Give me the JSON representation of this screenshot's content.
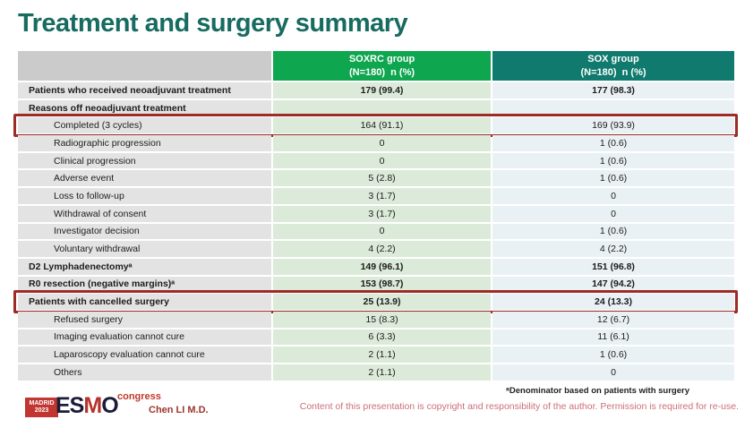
{
  "slide": {
    "title": "Treatment and surgery summary",
    "table": {
      "header": {
        "soxrc_label": "SOXRC group",
        "soxrc_sub": "(N=180)  n (%)",
        "sox_label": "SOX group",
        "sox_sub": "(N=180)  n (%)"
      },
      "rows": [
        {
          "label": "Patients who received neoadjuvant treatment",
          "soxrc": "179 (99.4)",
          "sox": "177 (98.3)"
        },
        {
          "label": "Reasons off neoadjuvant treatment",
          "soxrc": "",
          "sox": ""
        },
        {
          "label": "Completed (3 cycles)",
          "soxrc": "164 (91.1)",
          "sox": "169 (93.9)"
        },
        {
          "label": "Radiographic progression",
          "soxrc": "0",
          "sox": "1 (0.6)"
        },
        {
          "label": "Clinical progression",
          "soxrc": "0",
          "sox": "1 (0.6)"
        },
        {
          "label": "Adverse event",
          "soxrc": "5 (2.8)",
          "sox": "1 (0.6)"
        },
        {
          "label": "Loss to follow-up",
          "soxrc": "3 (1.7)",
          "sox": "0"
        },
        {
          "label": "Withdrawal of consent",
          "soxrc": "3 (1.7)",
          "sox": "0"
        },
        {
          "label": "Investigator decision",
          "soxrc": "0",
          "sox": "1 (0.6)"
        },
        {
          "label": "Voluntary withdrawal",
          "soxrc": "4 (2.2)",
          "sox": "4 (2.2)"
        },
        {
          "label": "D2 Lymphadenectomyᵃ",
          "soxrc": "149 (96.1)",
          "sox": "151 (96.8)"
        },
        {
          "label": "R0 resection (negative margins)ᵃ",
          "soxrc": "153 (98.7)",
          "sox": "147 (94.2)"
        },
        {
          "label": "Patients with cancelled surgery",
          "soxrc": "25 (13.9)",
          "sox": "24 (13.3)"
        },
        {
          "label": "Refused surgery",
          "soxrc": "15 (8.3)",
          "sox": "12 (6.7)"
        },
        {
          "label": "Imaging evaluation cannot cure",
          "soxrc": "6 (3.3)",
          "sox": "11 (6.1)"
        },
        {
          "label": "Laparoscopy evaluation cannot cure",
          "soxrc": "2 (1.1)",
          "sox": "1 (0.6)"
        },
        {
          "label": "Others",
          "soxrc": "2 (1.1)",
          "sox": "0"
        }
      ]
    },
    "footnote": "ᵃDenominator based on patients with surgery",
    "copyright": "Content of this presentation is copyright and responsibility of the author. Permission is required for re-use.",
    "author": "Chen LI M.D.",
    "logo": {
      "city": "MADRID",
      "year": "2023",
      "org_es": "ES",
      "org_m": "M",
      "org_o": "O",
      "event": "congress"
    },
    "colors": {
      "title_teal": "#176b60",
      "soxrc_header_green": "#0ea64f",
      "sox_header_teal": "#0f7a6d",
      "soxrc_cell_green": "#dcead9",
      "sox_cell_blue": "#eaf1f4",
      "label_cell_gray": "#e3e3e3",
      "highlight_red": "#9d2c26",
      "copyright_rose": "#cc6e78",
      "author_red": "#9c352c"
    }
  }
}
